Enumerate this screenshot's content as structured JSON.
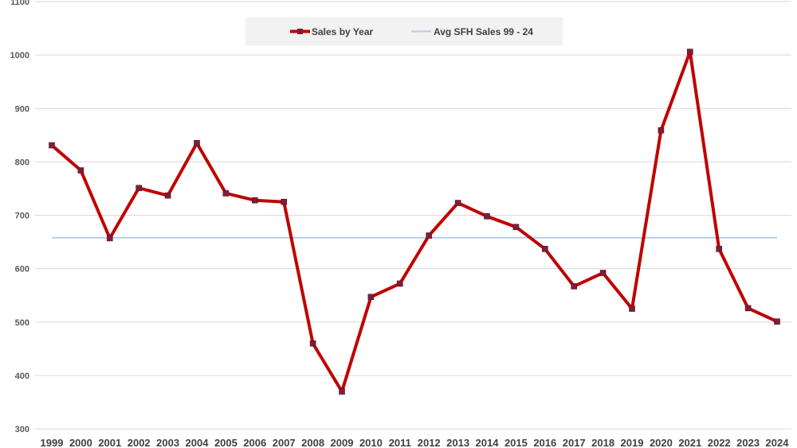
{
  "chart_data": {
    "type": "line",
    "x": [
      "1999",
      "2000",
      "2001",
      "2002",
      "2003",
      "2004",
      "2005",
      "2006",
      "2007",
      "2008",
      "2009",
      "2010",
      "2011",
      "2012",
      "2013",
      "2014",
      "2015",
      "2016",
      "2017",
      "2018",
      "2019",
      "2020",
      "2021",
      "2022",
      "2023",
      "2024"
    ],
    "series": [
      {
        "name": "Sales by Year",
        "color": "#c00000",
        "values": [
          831,
          784,
          657,
          751,
          737,
          835,
          741,
          728,
          725,
          460,
          370,
          547,
          572,
          662,
          723,
          698,
          678,
          637,
          567,
          592,
          525,
          859,
          1006,
          637,
          526,
          501
        ]
      },
      {
        "name": "Avg SFH Sales 99 - 24",
        "color": "#b4cde9",
        "values": [
          658,
          658,
          658,
          658,
          658,
          658,
          658,
          658,
          658,
          658,
          658,
          658,
          658,
          658,
          658,
          658,
          658,
          658,
          658,
          658,
          658,
          658,
          658,
          658,
          658,
          658
        ]
      }
    ],
    "yticks": [
      300,
      400,
      500,
      600,
      700,
      800,
      900,
      1000,
      1100
    ],
    "ylim": [
      300,
      1100
    ],
    "grid": true,
    "legend": "top-center"
  }
}
